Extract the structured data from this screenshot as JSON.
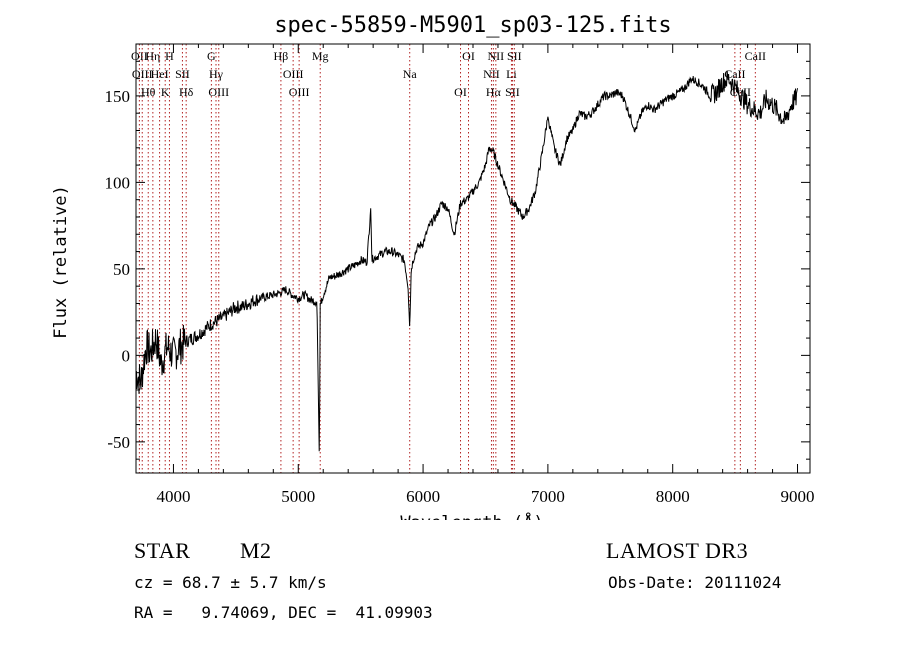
{
  "chart_data": {
    "type": "line",
    "title": "spec-55859-M5901_sp03-125.fits",
    "xlabel": "Wavelength (Å)",
    "ylabel": "Flux (relative)",
    "xlim": [
      3700,
      9100
    ],
    "ylim": [
      -68,
      180
    ],
    "x_ticks": [
      4000,
      5000,
      6000,
      7000,
      8000,
      9000
    ],
    "y_ticks": [
      -50,
      0,
      50,
      100,
      150
    ],
    "series": [
      {
        "name": "flux",
        "color": "#000000",
        "x": [
          3700,
          3740,
          3780,
          3820,
          3860,
          3900,
          3950,
          4000,
          4050,
          4100,
          4150,
          4200,
          4250,
          4300,
          4350,
          4400,
          4450,
          4500,
          4550,
          4600,
          4650,
          4700,
          4750,
          4800,
          4850,
          4900,
          4950,
          5000,
          5050,
          5100,
          5150,
          5170,
          5175,
          5180,
          5200,
          5250,
          5300,
          5350,
          5400,
          5450,
          5500,
          5550,
          5580,
          5590,
          5600,
          5650,
          5700,
          5750,
          5800,
          5850,
          5880,
          5893,
          5905,
          5920,
          5950,
          6000,
          6050,
          6100,
          6150,
          6200,
          6250,
          6300,
          6350,
          6400,
          6450,
          6500,
          6530,
          6560,
          6600,
          6650,
          6700,
          6750,
          6800,
          6850,
          6900,
          6950,
          7000,
          7050,
          7100,
          7150,
          7200,
          7250,
          7300,
          7350,
          7400,
          7450,
          7500,
          7550,
          7600,
          7650,
          7700,
          7750,
          7800,
          7850,
          7900,
          7950,
          8000,
          8050,
          8100,
          8150,
          8200,
          8250,
          8300,
          8350,
          8400,
          8450,
          8500,
          8550,
          8600,
          8650,
          8700,
          8750,
          8800,
          8850,
          8900,
          8950,
          9000
        ],
        "y": [
          -10,
          -15,
          5,
          2,
          10,
          -5,
          5,
          0,
          5,
          8,
          10,
          12,
          15,
          18,
          20,
          22,
          25,
          28,
          28,
          30,
          32,
          33,
          34,
          35,
          36,
          38,
          35,
          33,
          35,
          32,
          31,
          -65,
          30,
          30,
          35,
          45,
          46,
          48,
          50,
          52,
          55,
          54,
          85,
          55,
          56,
          58,
          60,
          60,
          58,
          55,
          40,
          15,
          50,
          55,
          62,
          65,
          75,
          80,
          88,
          85,
          70,
          88,
          90,
          95,
          100,
          110,
          120,
          118,
          110,
          100,
          90,
          85,
          80,
          85,
          95,
          115,
          138,
          120,
          110,
          125,
          130,
          140,
          138,
          140,
          145,
          150,
          150,
          152,
          150,
          140,
          130,
          140,
          145,
          142,
          145,
          148,
          150,
          152,
          155,
          160,
          158,
          155,
          150,
          152,
          158,
          160,
          155,
          150,
          145,
          142,
          140,
          148,
          145,
          140,
          135,
          145,
          150
        ]
      }
    ],
    "line_markers": [
      {
        "wavelength": 3727,
        "label": "OII"
      },
      {
        "wavelength": 3750,
        "label": "OIII"
      },
      {
        "wavelength": 3798,
        "label": "Hθ"
      },
      {
        "wavelength": 3835,
        "label": "Hη"
      },
      {
        "wavelength": 3889,
        "label": "HeI"
      },
      {
        "wavelength": 3934,
        "label": "K"
      },
      {
        "wavelength": 3968,
        "label": "H"
      },
      {
        "wavelength": 4072,
        "label": "SII"
      },
      {
        "wavelength": 4102,
        "label": "Hδ"
      },
      {
        "wavelength": 4304,
        "label": "G"
      },
      {
        "wavelength": 4341,
        "label": "Hγ"
      },
      {
        "wavelength": 4363,
        "label": "OIII"
      },
      {
        "wavelength": 4861,
        "label": "Hβ"
      },
      {
        "wavelength": 4959,
        "label": "OIII"
      },
      {
        "wavelength": 5007,
        "label": "OIII"
      },
      {
        "wavelength": 5176,
        "label": "Mg"
      },
      {
        "wavelength": 5893,
        "label": "Na"
      },
      {
        "wavelength": 6300,
        "label": "OI"
      },
      {
        "wavelength": 6364,
        "label": "OI"
      },
      {
        "wavelength": 6548,
        "label": "NII"
      },
      {
        "wavelength": 6563,
        "label": "Hα"
      },
      {
        "wavelength": 6583,
        "label": "NII"
      },
      {
        "wavelength": 6708,
        "label": "Li"
      },
      {
        "wavelength": 6716,
        "label": "SII"
      },
      {
        "wavelength": 6731,
        "label": "SII"
      },
      {
        "wavelength": 8498,
        "label": "CaII"
      },
      {
        "wavelength": 8542,
        "label": "CaII"
      },
      {
        "wavelength": 8662,
        "label": "CaII"
      }
    ]
  },
  "info": {
    "object_class": "STAR",
    "subclass": "M2",
    "survey": "LAMOST DR3",
    "redshift": "cz = 68.7 ± 5.7 km/s",
    "obs_date": "Obs-Date: 20111024",
    "coordinates": "RA =   9.74069, DEC =  41.09903"
  }
}
